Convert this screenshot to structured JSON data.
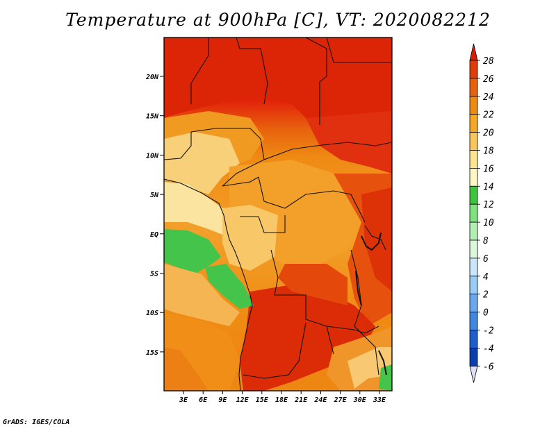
{
  "title": "Temperature at 900hPa [C], VT: 2020082212",
  "footer": "GrADS: IGES/COLA",
  "map": {
    "lat_labels": [
      "20N",
      "15N",
      "10N",
      "5N",
      "EQ",
      "5S",
      "10S",
      "15S"
    ],
    "lon_labels": [
      "3E",
      "6E",
      "9E",
      "12E",
      "15E",
      "18E",
      "21E",
      "24E",
      "27E",
      "30E",
      "33E"
    ]
  },
  "colorbar": {
    "labels": [
      "28",
      "26",
      "24",
      "22",
      "20",
      "18",
      "16",
      "14",
      "12",
      "10",
      "8",
      "6",
      "4",
      "2",
      "0",
      "-2",
      "-4",
      "-6"
    ],
    "colors": [
      "#d81e05",
      "#e23c0a",
      "#e8620e",
      "#ef8a13",
      "#f6a728",
      "#f9c65c",
      "#fde592",
      "#fdf7c4",
      "#3cc43c",
      "#7ee37e",
      "#b2f0b2",
      "#ddf7dd",
      "#c9e6fb",
      "#98cbf5",
      "#6aa9ee",
      "#3f87e0",
      "#1d5ecf",
      "#0c3fae",
      "#06228a"
    ]
  }
}
